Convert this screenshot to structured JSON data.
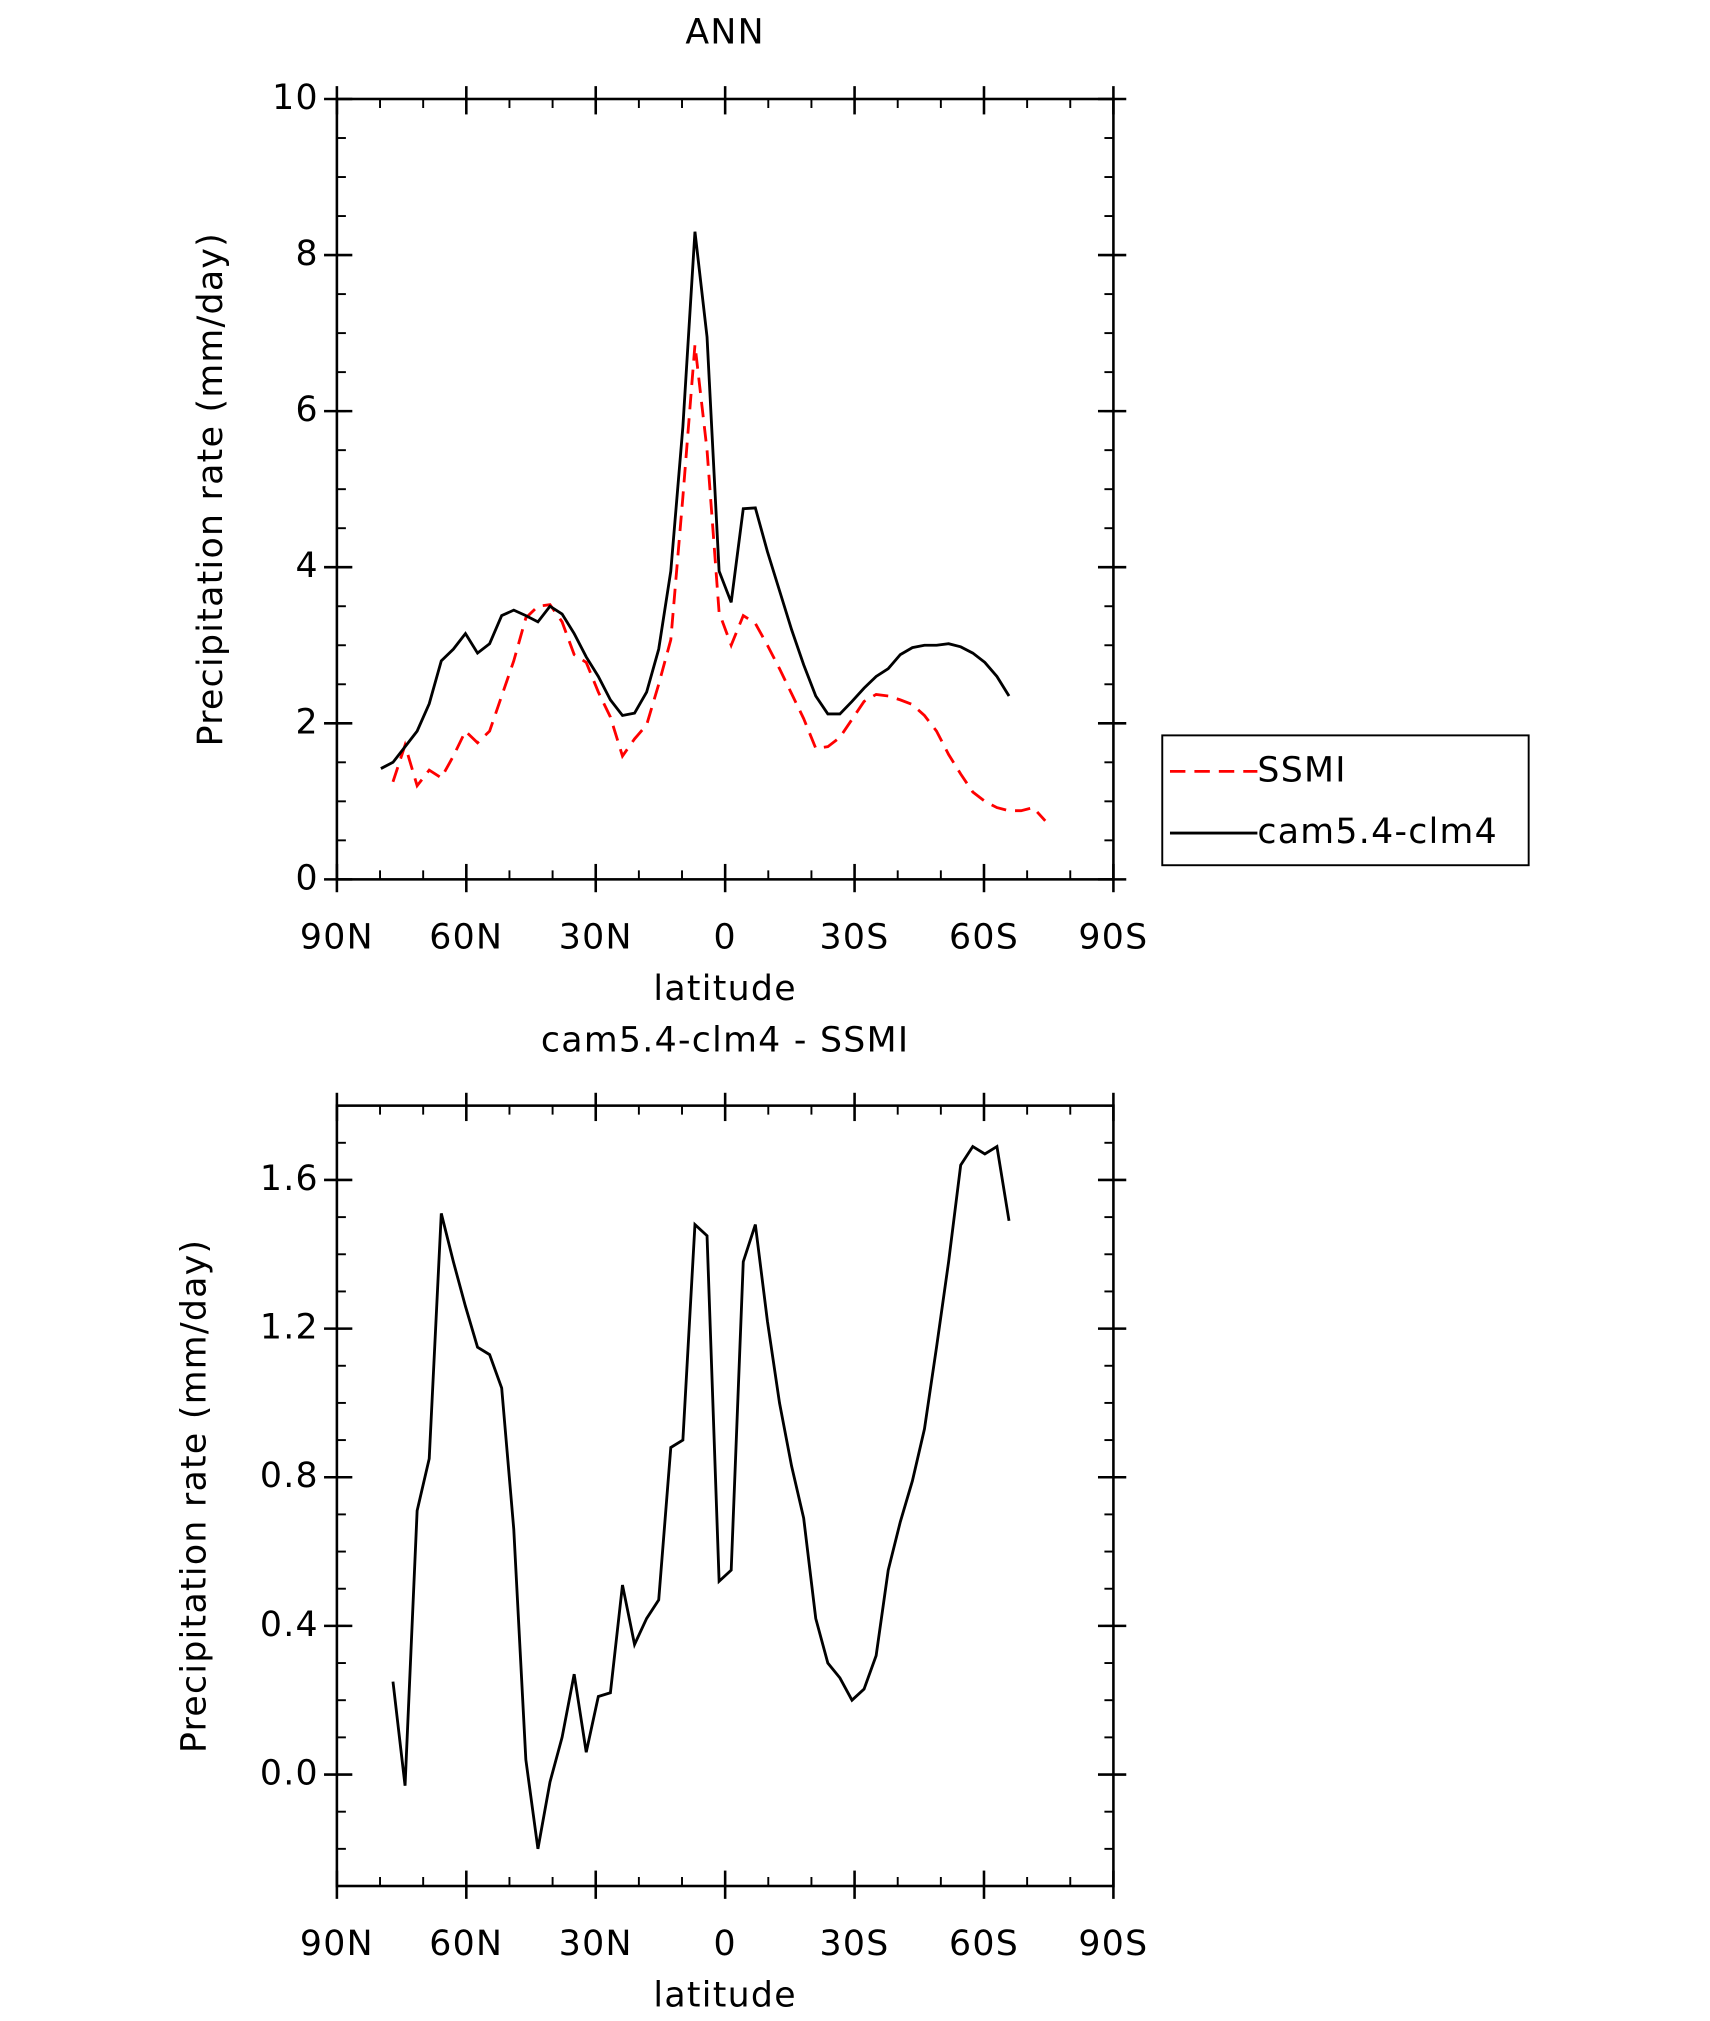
{
  "chart_data": [
    {
      "type": "line",
      "title": "ANN",
      "xlabel": "latitude",
      "ylabel": "Precipitation rate (mm/day)",
      "x": [
        79.8,
        77.0,
        74.2,
        71.4,
        68.6,
        65.8,
        63.0,
        60.2,
        57.4,
        54.6,
        51.8,
        49.0,
        46.2,
        43.4,
        40.6,
        37.8,
        35.0,
        32.2,
        29.4,
        26.6,
        23.8,
        21.0,
        18.2,
        15.4,
        12.6,
        9.8,
        7.0,
        4.2,
        1.4,
        -1.4,
        -4.2,
        -7.0,
        -9.8,
        -12.6,
        -15.4,
        -18.2,
        -21.0,
        -23.8,
        -26.6,
        -29.4,
        -32.2,
        -35.0,
        -37.8,
        -40.6,
        -43.4,
        -46.2,
        -49.0,
        -51.8,
        -54.6,
        -57.4,
        -60.2,
        -63.0,
        -65.8,
        -68.6,
        -71.4,
        -74.2
      ],
      "series": [
        {
          "name": "SSMI",
          "color": "#ff0000",
          "linestyle": "dashed",
          "values": [
            null,
            1.25,
            1.72,
            1.2,
            1.4,
            1.3,
            1.58,
            1.9,
            1.75,
            1.9,
            2.35,
            2.8,
            3.35,
            3.5,
            3.52,
            3.3,
            2.88,
            2.78,
            2.4,
            2.08,
            1.58,
            1.8,
            1.98,
            2.5,
            3.07,
            4.9,
            6.85,
            5.5,
            3.42,
            3.0,
            3.38,
            3.28,
            3.0,
            2.7,
            2.38,
            2.06,
            1.68,
            1.7,
            1.82,
            2.05,
            2.28,
            2.37,
            2.35,
            2.3,
            2.24,
            2.1,
            1.9,
            1.6,
            1.35,
            1.12,
            1.0,
            0.92,
            0.88,
            0.88,
            0.92,
            0.75
          ]
        },
        {
          "name": "cam5.4-clm4",
          "color": "#000000",
          "linestyle": "solid",
          "values": [
            1.42,
            1.5,
            1.7,
            1.9,
            2.25,
            2.8,
            2.95,
            3.15,
            2.9,
            3.02,
            3.38,
            3.45,
            3.38,
            3.3,
            3.5,
            3.4,
            3.15,
            2.85,
            2.6,
            2.3,
            2.1,
            2.13,
            2.4,
            2.95,
            3.95,
            5.8,
            8.3,
            6.95,
            3.95,
            3.55,
            4.75,
            4.76,
            4.2,
            3.7,
            3.2,
            2.75,
            2.35,
            2.12,
            2.12,
            2.28,
            2.45,
            2.6,
            2.7,
            2.88,
            2.97,
            3.0,
            3.0,
            3.02,
            2.98,
            2.9,
            2.78,
            2.6,
            2.35,
            null,
            null,
            null
          ]
        }
      ],
      "xlim": [
        90,
        -90
      ],
      "xticks": [
        {
          "value": 90,
          "label": "90N"
        },
        {
          "value": 60,
          "label": "60N"
        },
        {
          "value": 30,
          "label": "30N"
        },
        0,
        {
          "value": -30,
          "label": "30S"
        },
        {
          "value": -60,
          "label": "60S"
        },
        {
          "value": -90,
          "label": "90S"
        }
      ],
      "ylim": [
        0,
        10
      ],
      "yticks": [
        0,
        2,
        4,
        6,
        8,
        10
      ],
      "legend": "right"
    },
    {
      "type": "line",
      "title": "cam5.4-clm4 - SSMI",
      "xlabel": "latitude",
      "ylabel": "Precipitation rate (mm/day)",
      "x": [
        79.8,
        77.0,
        74.2,
        71.4,
        68.6,
        65.8,
        63.0,
        60.2,
        57.4,
        54.6,
        51.8,
        49.0,
        46.2,
        43.4,
        40.6,
        37.8,
        35.0,
        32.2,
        29.4,
        26.6,
        23.8,
        21.0,
        18.2,
        15.4,
        12.6,
        9.8,
        7.0,
        4.2,
        1.4,
        -1.4,
        -4.2,
        -7.0,
        -9.8,
        -12.6,
        -15.4,
        -18.2,
        -21.0,
        -23.8,
        -26.6,
        -29.4,
        -32.2,
        -35.0,
        -37.8,
        -40.6,
        -43.4,
        -46.2,
        -49.0,
        -51.8,
        -54.6,
        -57.4,
        -60.2,
        -63.0,
        -65.8,
        -68.6,
        -71.4,
        -74.2
      ],
      "series": [
        {
          "color": "#000000",
          "linestyle": "solid",
          "values": [
            null,
            0.25,
            -0.03,
            0.71,
            0.85,
            1.51,
            1.38,
            1.26,
            1.15,
            1.13,
            1.04,
            0.66,
            0.04,
            -0.2,
            -0.02,
            0.1,
            0.27,
            0.06,
            0.21,
            0.22,
            0.51,
            0.35,
            0.42,
            0.47,
            0.88,
            0.9,
            1.48,
            1.45,
            0.52,
            0.55,
            1.38,
            1.48,
            1.22,
            1.0,
            0.83,
            0.69,
            0.42,
            0.3,
            0.26,
            0.2,
            0.23,
            0.32,
            0.55,
            0.68,
            0.79,
            0.93,
            1.15,
            1.38,
            1.64,
            1.69,
            1.67,
            1.69,
            1.49,
            null,
            null,
            null
          ]
        }
      ],
      "xlim": [
        90,
        -90
      ],
      "xticks": [
        {
          "value": 90,
          "label": "90N"
        },
        {
          "value": 60,
          "label": "60N"
        },
        {
          "value": 30,
          "label": "30N"
        },
        0,
        {
          "value": -30,
          "label": "30S"
        },
        {
          "value": -60,
          "label": "60S"
        },
        {
          "value": -90,
          "label": "90S"
        }
      ],
      "ylim": [
        -0.3,
        1.8
      ],
      "yticks": [
        {
          "value": 0,
          "label": "0.0"
        },
        {
          "value": 0.4,
          "label": "0.4"
        },
        {
          "value": 0.8,
          "label": "0.8"
        },
        {
          "value": 1.2,
          "label": "1.2"
        },
        {
          "value": 1.6,
          "label": "1.6"
        }
      ]
    }
  ]
}
